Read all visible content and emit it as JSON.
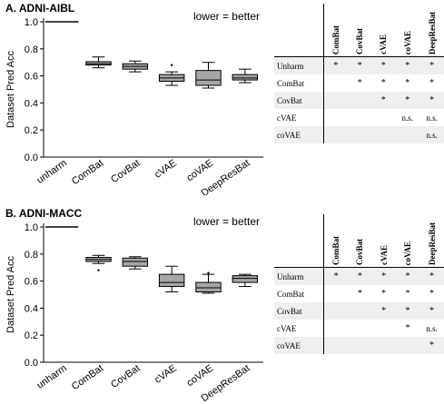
{
  "chart_data": [
    {
      "type": "box",
      "panel_title": "A. ADNI-AIBL",
      "annotation": "lower = better",
      "ylabel": "Dataset Pred Acc",
      "ylim": [
        0.0,
        1.0
      ],
      "yticks": [
        "0.0",
        "0.2",
        "0.4",
        "0.6",
        "0.8",
        "1.0"
      ],
      "categories": [
        "unharm",
        "ComBat",
        "CovBat",
        "cVAE",
        "coVAE",
        "DeepResBat"
      ],
      "boxes": [
        {
          "min": 1.0,
          "q1": 1.0,
          "median": 1.0,
          "q3": 1.0,
          "max": 1.0,
          "outliers": []
        },
        {
          "min": 0.66,
          "q1": 0.68,
          "median": 0.69,
          "q3": 0.705,
          "max": 0.74,
          "outliers": []
        },
        {
          "min": 0.63,
          "q1": 0.65,
          "median": 0.67,
          "q3": 0.69,
          "max": 0.71,
          "outliers": []
        },
        {
          "min": 0.53,
          "q1": 0.56,
          "median": 0.585,
          "q3": 0.61,
          "max": 0.63,
          "outliers": [
            0.68
          ]
        },
        {
          "min": 0.51,
          "q1": 0.53,
          "median": 0.57,
          "q3": 0.64,
          "max": 0.7,
          "outliers": []
        },
        {
          "min": 0.55,
          "q1": 0.57,
          "median": 0.585,
          "q3": 0.61,
          "max": 0.65,
          "outliers": []
        }
      ]
    },
    {
      "type": "box",
      "panel_title": "B. ADNI-MACC",
      "annotation": "lower = better",
      "ylabel": "Dataset Pred Acc",
      "ylim": [
        0.0,
        1.0
      ],
      "yticks": [
        "0.0",
        "0.2",
        "0.4",
        "0.6",
        "0.8",
        "1.0"
      ],
      "categories": [
        "unharm",
        "ComBat",
        "CovBat",
        "cVAE",
        "coVAE",
        "DeepResBat"
      ],
      "boxes": [
        {
          "min": 1.0,
          "q1": 1.0,
          "median": 1.0,
          "q3": 1.0,
          "max": 1.0,
          "outliers": []
        },
        {
          "min": 0.73,
          "q1": 0.745,
          "median": 0.76,
          "q3": 0.775,
          "max": 0.79,
          "outliers": [
            0.68
          ]
        },
        {
          "min": 0.69,
          "q1": 0.71,
          "median": 0.745,
          "q3": 0.77,
          "max": 0.78,
          "outliers": []
        },
        {
          "min": 0.52,
          "q1": 0.56,
          "median": 0.59,
          "q3": 0.65,
          "max": 0.71,
          "outliers": []
        },
        {
          "min": 0.51,
          "q1": 0.52,
          "median": 0.55,
          "q3": 0.59,
          "max": 0.65,
          "outliers": [
            0.66
          ]
        },
        {
          "min": 0.56,
          "q1": 0.59,
          "median": 0.62,
          "q3": 0.64,
          "max": 0.65,
          "outliers": []
        }
      ]
    }
  ],
  "tables": [
    {
      "columns": [
        "ComBat",
        "CovBat",
        "cVAE",
        "coVAE",
        "DeepResBat"
      ],
      "rows": [
        {
          "label": "Unharm",
          "cells": [
            "*",
            "*",
            "*",
            "*",
            "*"
          ]
        },
        {
          "label": "ComBat",
          "cells": [
            "",
            "*",
            "*",
            "*",
            "*"
          ]
        },
        {
          "label": "CovBat",
          "cells": [
            "",
            "",
            "*",
            "*",
            "*"
          ]
        },
        {
          "label": "cVAE",
          "cells": [
            "",
            "",
            "",
            "n.s.",
            "n.s."
          ]
        },
        {
          "label": "coVAE",
          "cells": [
            "",
            "",
            "",
            "",
            "n.s."
          ]
        }
      ]
    },
    {
      "columns": [
        "ComBat",
        "CovBat",
        "cVAE",
        "coVAE",
        "DeepResBat"
      ],
      "rows": [
        {
          "label": "Unharm",
          "cells": [
            "*",
            "*",
            "*",
            "*",
            "*"
          ]
        },
        {
          "label": "ComBat",
          "cells": [
            "",
            "*",
            "*",
            "*",
            "*"
          ]
        },
        {
          "label": "CovBat",
          "cells": [
            "",
            "",
            "*",
            "*",
            "*"
          ]
        },
        {
          "label": "cVAE",
          "cells": [
            "",
            "",
            "",
            "*",
            "n.s."
          ]
        },
        {
          "label": "coVAE",
          "cells": [
            "",
            "",
            "",
            "",
            "*"
          ]
        }
      ]
    }
  ]
}
